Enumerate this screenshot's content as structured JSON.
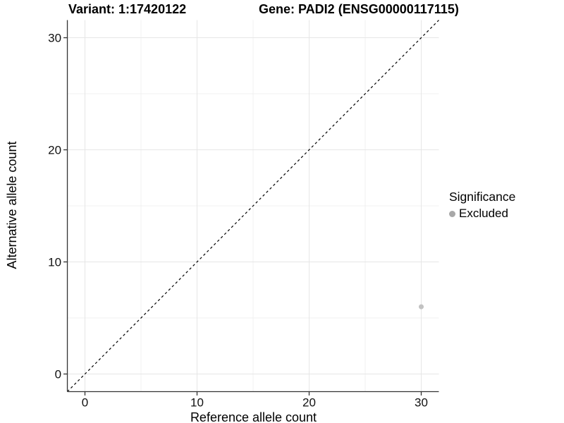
{
  "header": {
    "variant_title": "Variant: 1:17420122",
    "gene_title": "Gene: PADI2 (ENSG00000117115)"
  },
  "chart_data": {
    "type": "scatter",
    "xlabel": "Reference allele count",
    "ylabel": "Alternative allele count",
    "xlim": [
      0,
      30
    ],
    "ylim": [
      0,
      30
    ],
    "x_ticks": [
      0,
      10,
      20,
      30
    ],
    "y_ticks": [
      0,
      10,
      20,
      30
    ],
    "x_minor_ticks": [
      5,
      15,
      25
    ],
    "y_minor_ticks": [
      5,
      15,
      25
    ],
    "grid": true,
    "points": [
      {
        "x": 30,
        "y": 6,
        "significance": "Excluded"
      }
    ],
    "point_color": "#c2c2c2",
    "point_radius": 3.5,
    "abline": {
      "slope": 1,
      "intercept": 0,
      "style": "dashed",
      "color": "#000000"
    },
    "legend": {
      "title": "Significance",
      "position": "right",
      "entries": [
        {
          "label": "Excluded",
          "color": "#a8a8a8"
        }
      ]
    }
  },
  "style": {
    "axis_line_color": "#333333",
    "tick_color": "#333333",
    "tick_label_color": "#111111",
    "grid_major_color": "#e6e6e6",
    "grid_minor_color": "#f0f0f0",
    "background": "#ffffff"
  }
}
